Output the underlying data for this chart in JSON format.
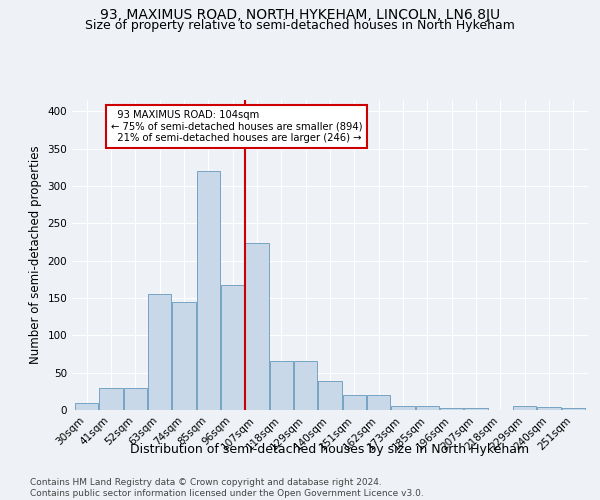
{
  "title": "93, MAXIMUS ROAD, NORTH HYKEHAM, LINCOLN, LN6 8JU",
  "subtitle": "Size of property relative to semi-detached houses in North Hykeham",
  "xlabel": "Distribution of semi-detached houses by size in North Hykeham",
  "ylabel": "Number of semi-detached properties",
  "footer": "Contains HM Land Registry data © Crown copyright and database right 2024.\nContains public sector information licensed under the Open Government Licence v3.0.",
  "categories": [
    "30sqm",
    "41sqm",
    "52sqm",
    "63sqm",
    "74sqm",
    "85sqm",
    "96sqm",
    "107sqm",
    "118sqm",
    "129sqm",
    "140sqm",
    "151sqm",
    "162sqm",
    "173sqm",
    "185sqm",
    "196sqm",
    "207sqm",
    "218sqm",
    "229sqm",
    "240sqm",
    "251sqm"
  ],
  "values": [
    10,
    30,
    30,
    155,
    145,
    320,
    168,
    224,
    65,
    65,
    39,
    20,
    20,
    6,
    5,
    3,
    3,
    0,
    5,
    4,
    3
  ],
  "bar_color": "#c8d8e8",
  "bar_edge_color": "#6699bb",
  "vline_x_index": 7,
  "vline_color": "#cc0000",
  "annotation_box_color": "#cc0000",
  "property_label": "93 MAXIMUS ROAD: 104sqm",
  "smaller_pct": 75,
  "smaller_count": 894,
  "larger_pct": 21,
  "larger_count": 246,
  "ylim": [
    0,
    415
  ],
  "yticks": [
    0,
    50,
    100,
    150,
    200,
    250,
    300,
    350,
    400
  ],
  "background_color": "#eef2f6",
  "grid_color": "#ffffff",
  "title_fontsize": 10,
  "subtitle_fontsize": 9,
  "axis_label_fontsize": 8.5,
  "tick_fontsize": 7.5,
  "footer_fontsize": 6.5
}
